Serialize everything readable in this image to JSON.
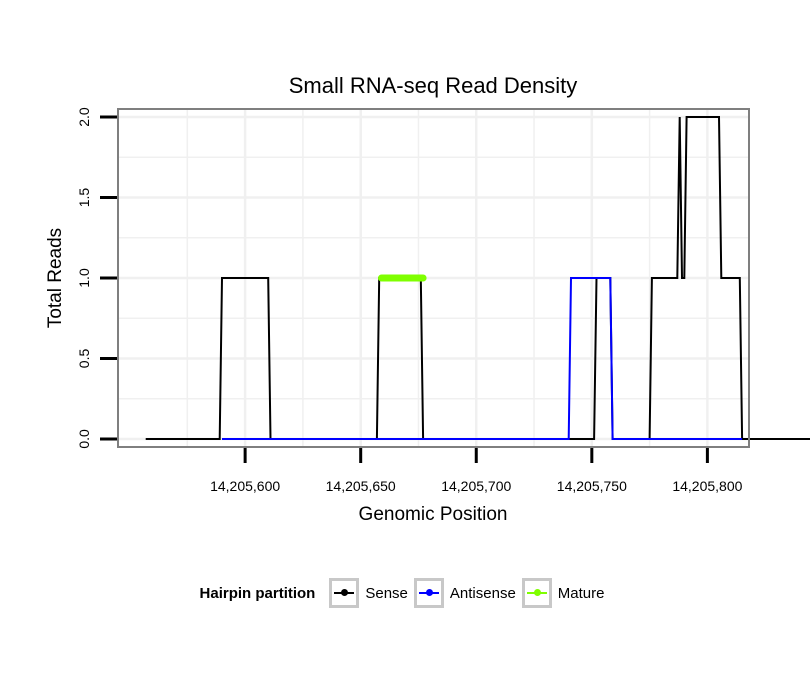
{
  "chart_data": {
    "type": "line",
    "title": "Small RNA-seq Read Density",
    "xlabel": "Genomic Position",
    "ylabel": "Total Reads",
    "xlim": [
      14205545,
      14205818
    ],
    "ylim": [
      -0.05,
      2.05
    ],
    "x_ticks": [
      14205600,
      14205650,
      14205700,
      14205750,
      14205800
    ],
    "x_tick_labels": [
      "14,205,600",
      "14,205,650",
      "14,205,700",
      "14,205,750",
      "14,205,800"
    ],
    "y_ticks": [
      0,
      0.5,
      1,
      1.5,
      2
    ],
    "y_tick_labels": [
      "0.0",
      "0.5",
      "1.0",
      "1.5",
      "2.0"
    ],
    "grid": true,
    "legend_position": "bottom",
    "legend_title": "Hairpin partition",
    "series": [
      {
        "name": "Sense",
        "color": "#000000",
        "points": [
          [
            14205557,
            0
          ],
          [
            14205589,
            0
          ],
          [
            14205590,
            1
          ],
          [
            14205610,
            1
          ],
          [
            14205611,
            0
          ],
          [
            14205657,
            0
          ],
          [
            14205658,
            1
          ],
          [
            14205676,
            1
          ],
          [
            14205677,
            0
          ],
          [
            14205751,
            0
          ],
          [
            14205752,
            1
          ],
          [
            14205758,
            1
          ],
          [
            14205759,
            0
          ],
          [
            14205775,
            0
          ],
          [
            14205776,
            1
          ],
          [
            14205787,
            1
          ],
          [
            14205788,
            2
          ],
          [
            14205789,
            1
          ],
          [
            14205790,
            1
          ],
          [
            14205791,
            2
          ],
          [
            14205805,
            2
          ],
          [
            14205806,
            1
          ],
          [
            14205814,
            1
          ],
          [
            14205815,
            0
          ],
          [
            14205847,
            0
          ]
        ]
      },
      {
        "name": "Antisense",
        "color": "#0000ff",
        "points": [
          [
            14205590,
            0
          ],
          [
            14205610,
            0
          ],
          [
            14205658,
            0
          ],
          [
            14205676,
            0
          ],
          [
            14205740,
            0
          ],
          [
            14205741,
            1
          ],
          [
            14205758,
            1
          ],
          [
            14205759,
            0
          ],
          [
            14205815,
            0
          ]
        ]
      },
      {
        "name": "Mature",
        "color": "#7fff00",
        "points": [
          [
            14205659,
            1
          ],
          [
            14205677,
            1
          ]
        ]
      }
    ]
  }
}
